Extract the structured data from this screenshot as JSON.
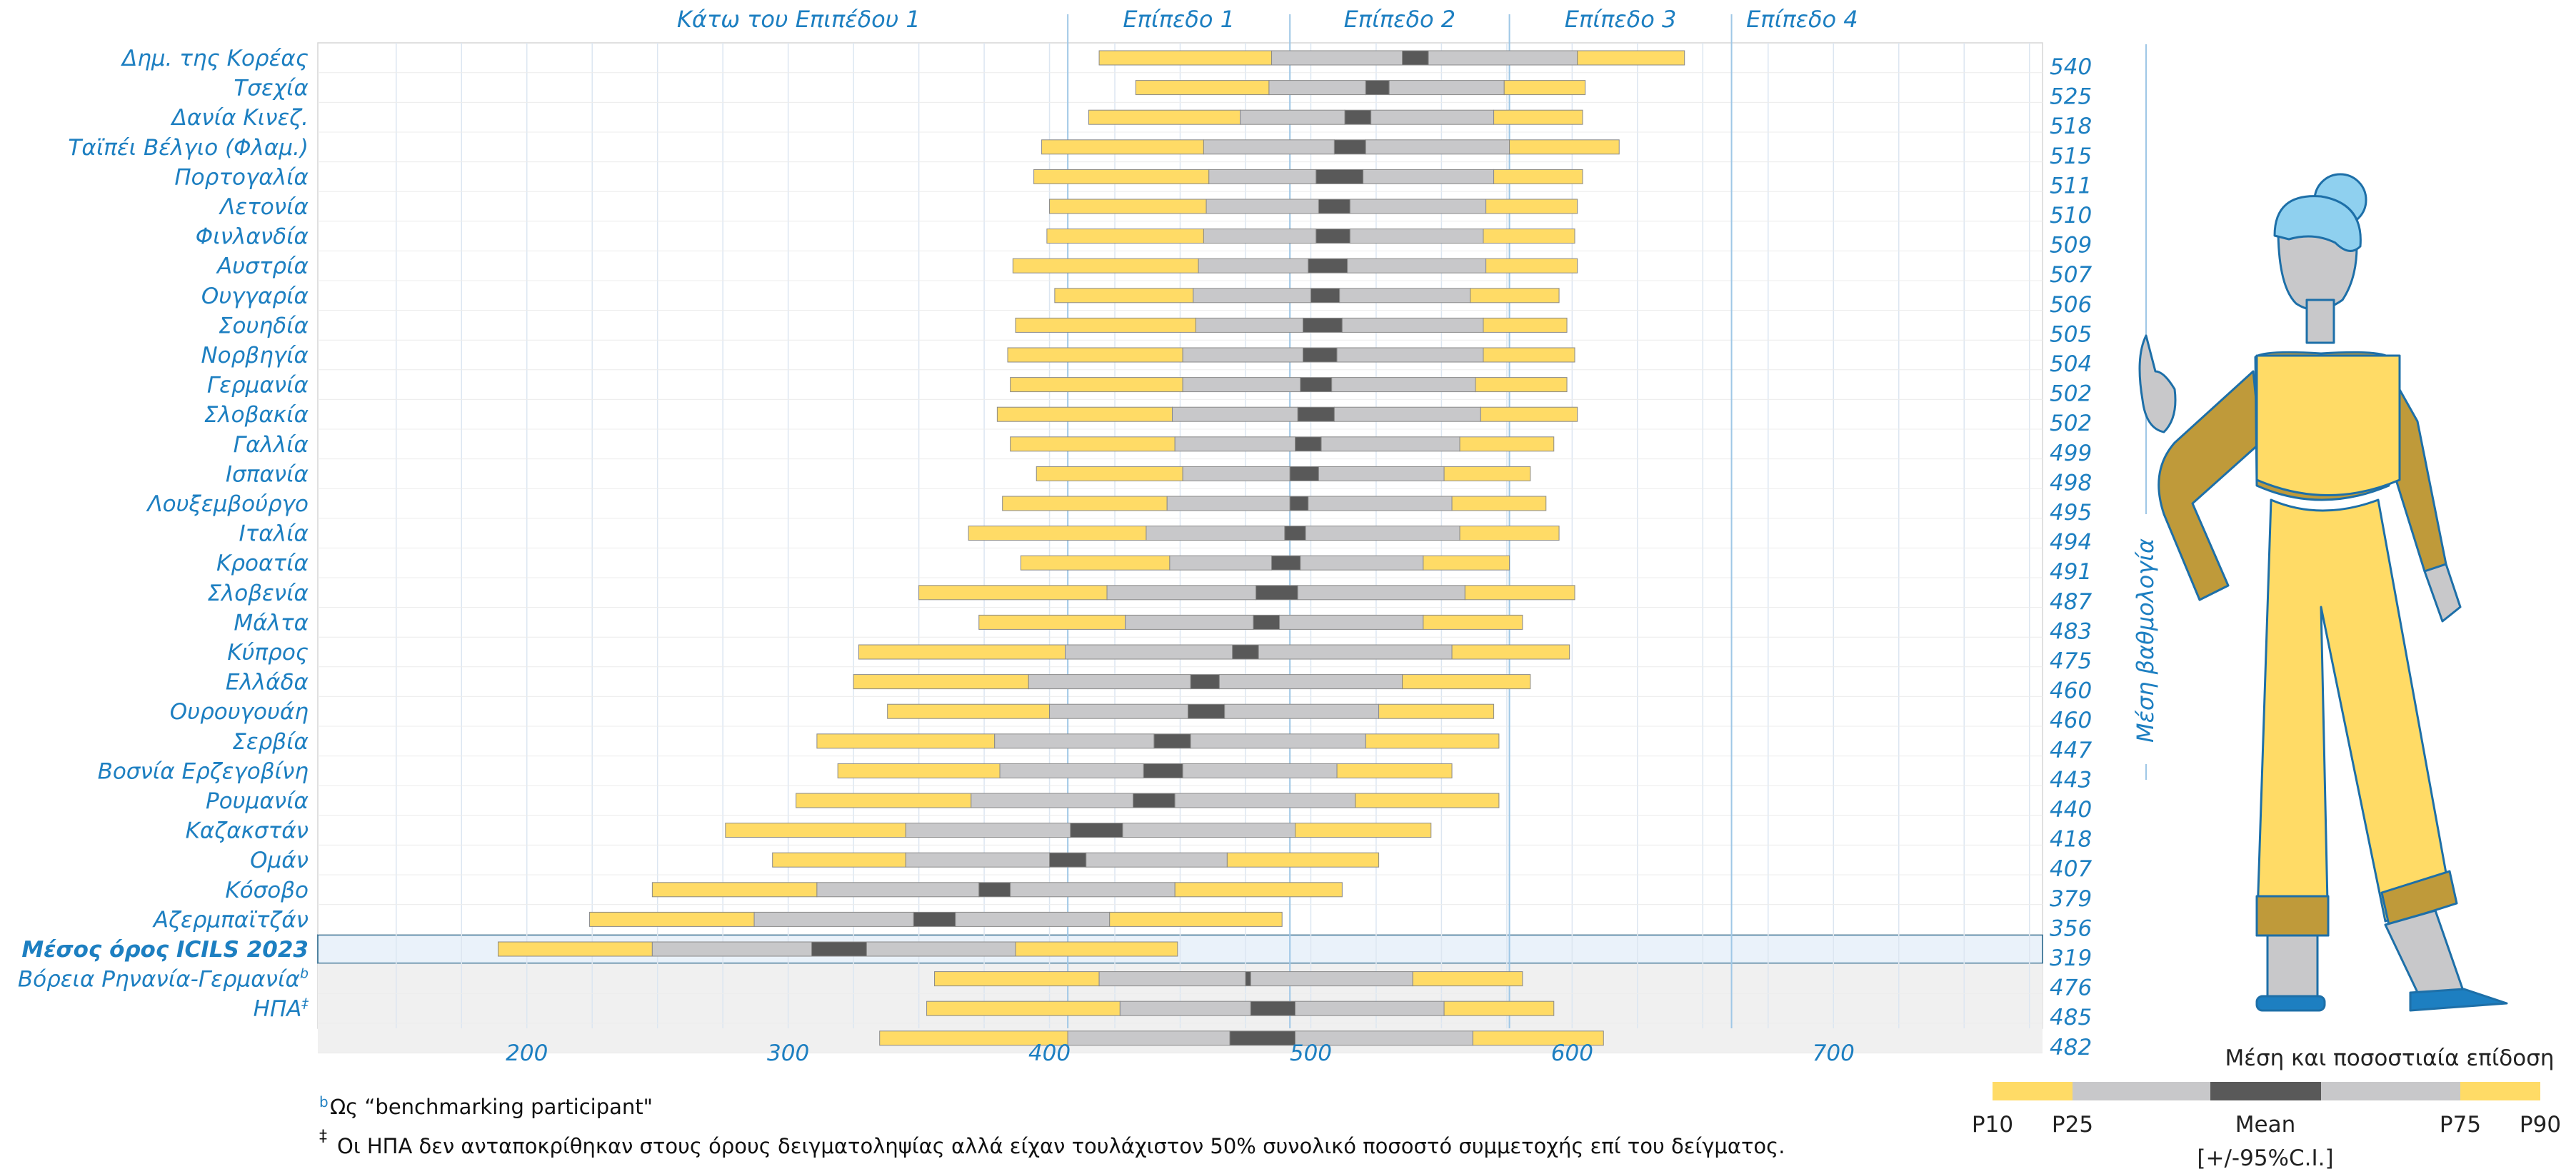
{
  "chart_data": {
    "type": "bar",
    "subtype": "percentile-range",
    "xlim": [
      120,
      780
    ],
    "x_ticks": [
      200,
      300,
      400,
      500,
      600,
      700
    ],
    "levels": [
      {
        "label": "Κάτω του Επιπέδου 1",
        "min": 120,
        "max": 407
      },
      {
        "label": "Επίπεδο 1",
        "min": 407,
        "max": 492
      },
      {
        "label": "Επίπεδο 2",
        "min": 492,
        "max": 576
      },
      {
        "label": "Επίπεδο 3",
        "min": 576,
        "max": 661
      },
      {
        "label": "Επίπεδο 4",
        "min": 661,
        "max": 780
      }
    ],
    "side_label": "Μέση βαθμολογία",
    "rows": [
      {
        "label": "Δημ. της Κορέας",
        "score": "540",
        "p10": 419,
        "p25": 485,
        "ci_lo": 535,
        "ci_hi": 545,
        "p75": 602,
        "p90": 643
      },
      {
        "label": "Τσεχία",
        "score": "525",
        "p10": 433,
        "p25": 484,
        "ci_lo": 521,
        "ci_hi": 530,
        "p75": 574,
        "p90": 605
      },
      {
        "label": "Δανία  Κινεζ.",
        "score": "518",
        "p10": 415,
        "p25": 473,
        "ci_lo": 513,
        "ci_hi": 523,
        "p75": 570,
        "p90": 604
      },
      {
        "label": "Ταϊπέι Βέλγιο (Φλαμ.)",
        "score": "515",
        "p10": 397,
        "p25": 459,
        "ci_lo": 509,
        "ci_hi": 521,
        "p75": 576,
        "p90": 618
      },
      {
        "label": "Πορτογαλία",
        "score": "511",
        "p10": 394,
        "p25": 461,
        "ci_lo": 502,
        "ci_hi": 520,
        "p75": 570,
        "p90": 604
      },
      {
        "label": "Λετονία",
        "score": "510",
        "p10": 400,
        "p25": 460,
        "ci_lo": 503,
        "ci_hi": 515,
        "p75": 567,
        "p90": 602
      },
      {
        "label": "Φινλανδία",
        "score": "509",
        "p10": 399,
        "p25": 459,
        "ci_lo": 502,
        "ci_hi": 515,
        "p75": 566,
        "p90": 601
      },
      {
        "label": "Αυστρία",
        "score": "507",
        "p10": 386,
        "p25": 457,
        "ci_lo": 499,
        "ci_hi": 514,
        "p75": 567,
        "p90": 602
      },
      {
        "label": "Ουγγαρία",
        "score": "506",
        "p10": 402,
        "p25": 455,
        "ci_lo": 500,
        "ci_hi": 511,
        "p75": 561,
        "p90": 595
      },
      {
        "label": "Σουηδία",
        "score": "505",
        "p10": 387,
        "p25": 456,
        "ci_lo": 497,
        "ci_hi": 512,
        "p75": 566,
        "p90": 598
      },
      {
        "label": "Νορβηγία",
        "score": "504",
        "p10": 384,
        "p25": 451,
        "ci_lo": 497,
        "ci_hi": 510,
        "p75": 566,
        "p90": 601
      },
      {
        "label": "Γερμανία",
        "score": "502",
        "p10": 385,
        "p25": 451,
        "ci_lo": 496,
        "ci_hi": 508,
        "p75": 563,
        "p90": 598
      },
      {
        "label": "Σλοβακία",
        "score": "502",
        "p10": 380,
        "p25": 447,
        "ci_lo": 495,
        "ci_hi": 509,
        "p75": 565,
        "p90": 602
      },
      {
        "label": "Γαλλία",
        "score": "499",
        "p10": 385,
        "p25": 448,
        "ci_lo": 494,
        "ci_hi": 504,
        "p75": 557,
        "p90": 593
      },
      {
        "label": "Ισπανία",
        "score": "498",
        "p10": 395,
        "p25": 451,
        "ci_lo": 492,
        "ci_hi": 503,
        "p75": 551,
        "p90": 584
      },
      {
        "label": "Λουξεμβούργο",
        "score": "495",
        "p10": 382,
        "p25": 445,
        "ci_lo": 492,
        "ci_hi": 499,
        "p75": 554,
        "p90": 590
      },
      {
        "label": "Ιταλία",
        "score": "494",
        "p10": 369,
        "p25": 437,
        "ci_lo": 490,
        "ci_hi": 498,
        "p75": 557,
        "p90": 595
      },
      {
        "label": "Κροατία",
        "score": "491",
        "p10": 389,
        "p25": 446,
        "ci_lo": 485,
        "ci_hi": 496,
        "p75": 543,
        "p90": 576
      },
      {
        "label": "Σλοβενία",
        "score": "487",
        "p10": 350,
        "p25": 422,
        "ci_lo": 479,
        "ci_hi": 495,
        "p75": 559,
        "p90": 601
      },
      {
        "label": "Μάλτα",
        "score": "483",
        "p10": 373,
        "p25": 429,
        "ci_lo": 478,
        "ci_hi": 488,
        "p75": 543,
        "p90": 581
      },
      {
        "label": "Κύπρος",
        "score": "475",
        "p10": 327,
        "p25": 406,
        "ci_lo": 470,
        "ci_hi": 480,
        "p75": 554,
        "p90": 599
      },
      {
        "label": "Ελλάδα",
        "score": "460",
        "p10": 325,
        "p25": 392,
        "ci_lo": 454,
        "ci_hi": 465,
        "p75": 535,
        "p90": 584
      },
      {
        "label": "Ουρουγουάη",
        "score": "460",
        "p10": 338,
        "p25": 400,
        "ci_lo": 453,
        "ci_hi": 467,
        "p75": 526,
        "p90": 570
      },
      {
        "label": "Σερβία",
        "score": "447",
        "p10": 311,
        "p25": 379,
        "ci_lo": 440,
        "ci_hi": 454,
        "p75": 521,
        "p90": 572
      },
      {
        "label": "Βοσνία Ερζεγοβίνη",
        "score": "443",
        "p10": 319,
        "p25": 381,
        "ci_lo": 436,
        "ci_hi": 451,
        "p75": 510,
        "p90": 554
      },
      {
        "label": "Ρουμανία",
        "score": "440",
        "p10": 303,
        "p25": 370,
        "ci_lo": 432,
        "ci_hi": 448,
        "p75": 517,
        "p90": 572
      },
      {
        "label": "Καζακστάν",
        "score": "418",
        "p10": 276,
        "p25": 345,
        "ci_lo": 408,
        "ci_hi": 428,
        "p75": 494,
        "p90": 546
      },
      {
        "label": "Ομάν",
        "score": "407",
        "p10": 294,
        "p25": 345,
        "ci_lo": 400,
        "ci_hi": 414,
        "p75": 468,
        "p90": 526
      },
      {
        "label": "Κόσοβο",
        "score": "379",
        "p10": 248,
        "p25": 311,
        "ci_lo": 373,
        "ci_hi": 385,
        "p75": 448,
        "p90": 512
      },
      {
        "label": "Αζερμπαϊτζάν",
        "score": "356",
        "p10": 224,
        "p25": 287,
        "ci_lo": 348,
        "ci_hi": 364,
        "p75": 423,
        "p90": 489
      },
      {
        "label": "Μέσος όρος ICILS 2023",
        "score": "319",
        "p10": 189,
        "p25": 248,
        "ci_lo": 309,
        "ci_hi": 330,
        "p75": 387,
        "p90": 449
      },
      {
        "label": "Βόρεια Ρηνανία-Γερμανία",
        "sup": "b",
        "score": "476",
        "p10": 356,
        "p25": 419,
        "ci_lo": 475,
        "ci_hi": 477,
        "p75": 539,
        "p90": 581
      },
      {
        "label": "ΗΠΑ",
        "sup": "‡",
        "score": "485",
        "p10": 353,
        "p25": 427,
        "ci_lo": 477,
        "ci_hi": 494,
        "p75": 551,
        "p90": 593
      },
      {
        "label": "",
        "score": "482",
        "p10": 335,
        "p25": 407,
        "ci_lo": 469,
        "ci_hi": 494,
        "p75": 562,
        "p90": 612
      }
    ],
    "legend": {
      "title": "Μέση και ποσοστιαία επίδοση",
      "labels": [
        "P10",
        "P25",
        "Mean",
        "P75",
        "P90"
      ],
      "ci_label": "[+/-95%C.I.]"
    },
    "notes": [
      {
        "mark": "b",
        "text": "Ως “benchmarking participant\""
      },
      {
        "mark": "‡",
        "text": "Οι ΗΠΑ δεν ανταποκρίθηκαν στους όρους δειγματοληψίας αλλά είχαν τουλάχιστον 50% συνολικό ποσοστό συμμετοχής επί του δείγματος."
      }
    ],
    "colors": {
      "outer": "#ffdb66",
      "inner": "#c8c8ca",
      "mean": "#595959",
      "text": "#1d7fc1",
      "grid": "#dce6f1",
      "level_line": "#9fc7e6",
      "highlight_fill": "#eaf2fa",
      "benchmark_fill": "#f0f0f0"
    }
  }
}
